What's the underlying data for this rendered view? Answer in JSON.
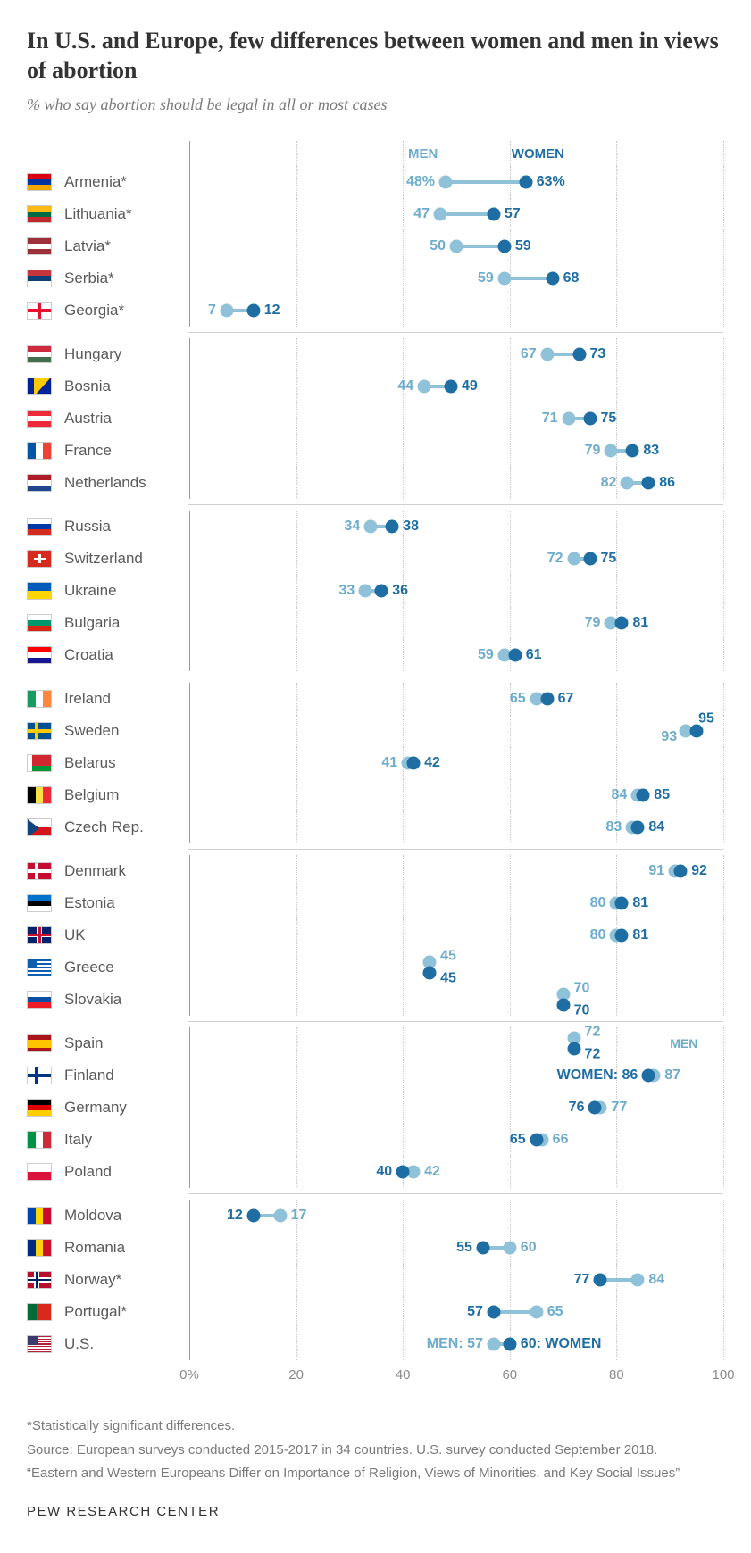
{
  "title": "In U.S. and Europe, few differences between women and men in views of abortion",
  "subtitle": "% who say abortion should be legal in all or most cases",
  "colors": {
    "men": "#8fc1d8",
    "women": "#1f6ea3",
    "men_text": "#6eacce",
    "women_text": "#1f6ea3",
    "grid": "#c9c9c9",
    "axis0": "#9a9a9a",
    "text": "#5a5a5a"
  },
  "legend": {
    "men": "MEN",
    "women": "WOMEN"
  },
  "chart": {
    "xmin": 0,
    "xmax": 100,
    "ticks": [
      {
        "v": 0,
        "label": "0%"
      },
      {
        "v": 20,
        "label": "20"
      },
      {
        "v": 40,
        "label": "40"
      },
      {
        "v": 60,
        "label": "60"
      },
      {
        "v": 80,
        "label": "80"
      },
      {
        "v": 100,
        "label": "100"
      }
    ]
  },
  "groups": [
    {
      "rows": [
        {
          "country": "Armenia*",
          "flag": "am",
          "men": 48,
          "women": 63,
          "men_label": "48%",
          "women_label": "63%"
        },
        {
          "country": "Lithuania*",
          "flag": "lt",
          "men": 47,
          "women": 57,
          "men_label": "47",
          "women_label": "57"
        },
        {
          "country": "Latvia*",
          "flag": "lv",
          "men": 50,
          "women": 59,
          "men_label": "50",
          "women_label": "59"
        },
        {
          "country": "Serbia*",
          "flag": "rs",
          "men": 59,
          "women": 68,
          "men_label": "59",
          "women_label": "68"
        },
        {
          "country": "Georgia*",
          "flag": "ge",
          "men": 7,
          "women": 12,
          "men_label": "7",
          "women_label": "12"
        }
      ]
    },
    {
      "rows": [
        {
          "country": "Hungary",
          "flag": "hu",
          "men": 67,
          "women": 73,
          "men_label": "67",
          "women_label": "73"
        },
        {
          "country": "Bosnia",
          "flag": "ba",
          "men": 44,
          "women": 49,
          "men_label": "44",
          "women_label": "49"
        },
        {
          "country": "Austria",
          "flag": "at",
          "men": 71,
          "women": 75,
          "men_label": "71",
          "women_label": "75"
        },
        {
          "country": "France",
          "flag": "fr",
          "men": 79,
          "women": 83,
          "men_label": "79",
          "women_label": "83"
        },
        {
          "country": "Netherlands",
          "flag": "nl",
          "men": 82,
          "women": 86,
          "men_label": "82",
          "women_label": "86"
        }
      ]
    },
    {
      "rows": [
        {
          "country": "Russia",
          "flag": "ru",
          "men": 34,
          "women": 38,
          "men_label": "34",
          "women_label": "38"
        },
        {
          "country": "Switzerland",
          "flag": "ch",
          "men": 72,
          "women": 75,
          "men_label": "72",
          "women_label": "75"
        },
        {
          "country": "Ukraine",
          "flag": "ua",
          "men": 33,
          "women": 36,
          "men_label": "33",
          "women_label": "36"
        },
        {
          "country": "Bulgaria",
          "flag": "bg",
          "men": 79,
          "women": 81,
          "men_label": "79",
          "women_label": "81"
        },
        {
          "country": "Croatia",
          "flag": "hr",
          "men": 59,
          "women": 61,
          "men_label": "59",
          "women_label": "61"
        }
      ]
    },
    {
      "rows": [
        {
          "country": "Ireland",
          "flag": "ie",
          "men": 65,
          "women": 67,
          "men_label": "65",
          "women_label": "67"
        },
        {
          "country": "Sweden",
          "flag": "se",
          "men": 93,
          "women": 95,
          "men_label": "93",
          "women_label": "95",
          "women_above": true
        },
        {
          "country": "Belarus",
          "flag": "by",
          "men": 41,
          "women": 42,
          "men_label": "41",
          "women_label": "42"
        },
        {
          "country": "Belgium",
          "flag": "be",
          "men": 84,
          "women": 85,
          "men_label": "84",
          "women_label": "85"
        },
        {
          "country": "Czech Rep.",
          "flag": "cz",
          "men": 83,
          "women": 84,
          "men_label": "83",
          "women_label": "84"
        }
      ]
    },
    {
      "rows": [
        {
          "country": "Denmark",
          "flag": "dk",
          "men": 91,
          "women": 92,
          "men_label": "91",
          "women_label": "92",
          "swap": true
        },
        {
          "country": "Estonia",
          "flag": "ee",
          "men": 80,
          "women": 81,
          "men_label": "80",
          "women_label": "81"
        },
        {
          "country": "UK",
          "flag": "gb",
          "men": 80,
          "women": 81,
          "men_label": "80",
          "women_label": "81"
        },
        {
          "country": "Greece",
          "flag": "gr",
          "men": 45,
          "women": 45,
          "men_label": "45",
          "women_label": "45",
          "stacked": true
        },
        {
          "country": "Slovakia",
          "flag": "sk",
          "men": 70,
          "women": 70,
          "men_label": "70",
          "women_label": "70",
          "stacked": true
        }
      ]
    },
    {
      "rows": [
        {
          "country": "Spain",
          "flag": "es",
          "men": 72,
          "women": 72,
          "men_label": "72",
          "women_label": "72",
          "stacked": true,
          "side_note_men": "MEN"
        },
        {
          "country": "Finland",
          "flag": "fi",
          "men": 87,
          "women": 86,
          "men_label": "87",
          "women_label": "WOMEN: 86",
          "swap": true
        },
        {
          "country": "Germany",
          "flag": "de",
          "men": 77,
          "women": 76,
          "men_label": "77",
          "women_label": "76",
          "swap": true
        },
        {
          "country": "Italy",
          "flag": "it",
          "men": 66,
          "women": 65,
          "men_label": "66",
          "women_label": "65",
          "swap": true
        },
        {
          "country": "Poland",
          "flag": "pl",
          "men": 42,
          "women": 40,
          "men_label": "42",
          "women_label": "40",
          "swap": true
        }
      ]
    },
    {
      "rows": [
        {
          "country": "Moldova",
          "flag": "md",
          "men": 17,
          "women": 12,
          "men_label": "17",
          "women_label": "12",
          "swap": true
        },
        {
          "country": "Romania",
          "flag": "ro",
          "men": 60,
          "women": 55,
          "men_label": "60",
          "women_label": "55",
          "swap": true
        },
        {
          "country": "Norway*",
          "flag": "no",
          "men": 84,
          "women": 77,
          "men_label": "84",
          "women_label": "77",
          "swap": true
        },
        {
          "country": "Portugal*",
          "flag": "pt",
          "men": 65,
          "women": 57,
          "men_label": "65",
          "women_label": "57",
          "swap": true
        },
        {
          "country": "U.S.",
          "flag": "us",
          "men": 57,
          "women": 60,
          "men_label": "MEN: 57",
          "women_label": "60: WOMEN"
        }
      ]
    }
  ],
  "footer": {
    "sig": "*Statistically significant differences.",
    "source": "Source: European surveys conducted 2015-2017 in 34 countries. U.S. survey conducted September 2018.",
    "quote": "“Eastern and Western Europeans Differ on Importance of Religion, Views of Minorities, and Key Social Issues”"
  },
  "attribution": "PEW RESEARCH CENTER"
}
